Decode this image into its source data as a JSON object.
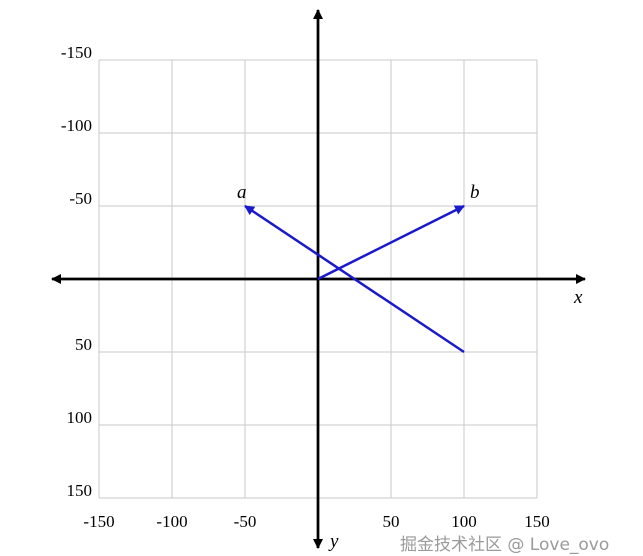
{
  "chart_data": {
    "type": "vector-plot",
    "xlim": [
      -150,
      150
    ],
    "ylim": [
      -150,
      150
    ],
    "y_axis_direction": "down",
    "grid": true,
    "grid_step": 50,
    "x_ticks": [
      "-150",
      "-100",
      "-50",
      "50",
      "100",
      "150"
    ],
    "x_tick_values": [
      -150,
      -100,
      -50,
      50,
      100,
      150
    ],
    "y_ticks": [
      "-150",
      "-100",
      "-50",
      "50",
      "100",
      "150"
    ],
    "y_tick_values": [
      -150,
      -100,
      -50,
      50,
      100,
      150
    ],
    "xlabel": "x",
    "ylabel": "y",
    "vectors": [
      {
        "name": "a",
        "from": [
          100,
          50
        ],
        "to": [
          -50,
          -50
        ]
      },
      {
        "name": "b",
        "from": [
          0,
          0
        ],
        "to": [
          100,
          -50
        ]
      }
    ],
    "vector_color": "#1a1acc"
  },
  "watermark": "掘金技术社区 @ Love_ovo"
}
